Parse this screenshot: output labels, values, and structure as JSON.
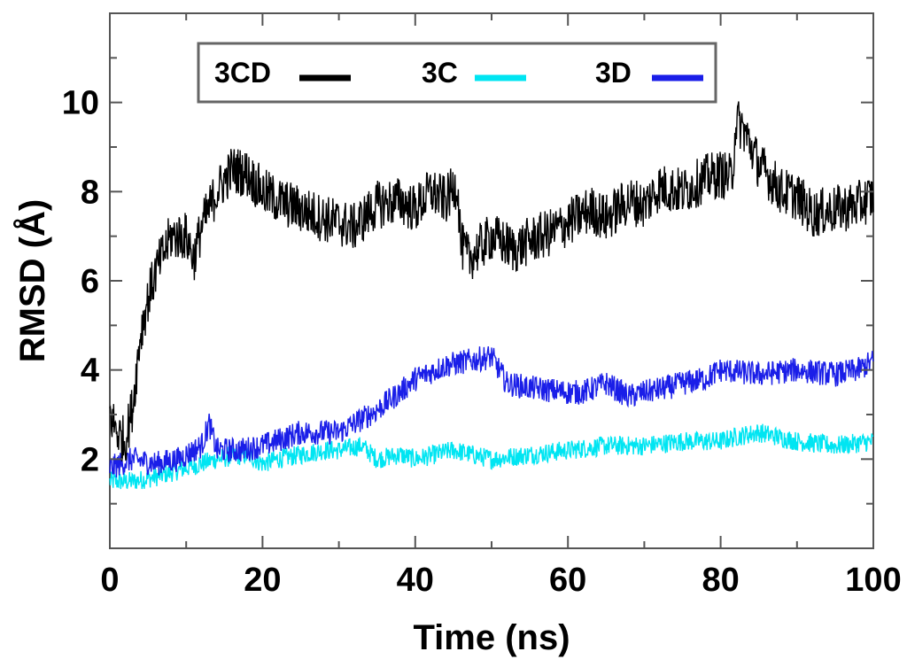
{
  "chart_data": {
    "type": "line",
    "xlabel": "Time (ns)",
    "ylabel": "RMSD (Å)",
    "xlim": [
      0,
      100
    ],
    "ylim": [
      0,
      12
    ],
    "x_ticks": [
      0,
      20,
      40,
      60,
      80,
      100
    ],
    "x_tick_labels": [
      "0",
      "20",
      "40",
      "60",
      "80",
      "100"
    ],
    "y_ticks": [
      2,
      4,
      6,
      8,
      10
    ],
    "y_tick_labels": [
      "2",
      "4",
      "6",
      "8",
      "10"
    ],
    "legend_placement": "top-center",
    "series": [
      {
        "name": "3CD",
        "color": "#000000",
        "x": [
          0,
          1,
          2,
          3,
          4,
          5,
          6,
          8,
          10,
          11,
          12,
          14,
          16,
          18,
          20,
          22,
          25,
          28,
          30,
          32,
          35,
          38,
          40,
          42,
          44,
          45.5,
          46,
          47,
          50,
          53,
          55,
          58,
          60,
          63,
          65,
          68,
          70,
          72,
          75,
          78,
          80,
          81.5,
          82,
          83,
          85,
          88,
          90,
          92,
          95,
          98,
          100
        ],
        "values": [
          3.0,
          2.6,
          2.4,
          3.2,
          4.8,
          5.6,
          6.2,
          7.0,
          7.0,
          6.5,
          7.2,
          8.0,
          8.5,
          8.4,
          8.0,
          7.8,
          7.6,
          7.4,
          7.3,
          7.2,
          7.7,
          7.8,
          7.6,
          8.0,
          7.8,
          8.2,
          6.8,
          6.5,
          7.0,
          6.7,
          6.9,
          7.1,
          7.3,
          7.6,
          7.4,
          7.8,
          7.7,
          8.1,
          8.0,
          8.3,
          8.4,
          8.3,
          9.6,
          9.4,
          8.6,
          8.0,
          7.9,
          7.5,
          7.6,
          7.7,
          7.9
        ]
      },
      {
        "name": "3C",
        "color": "#00e5f2",
        "x": [
          0,
          3,
          6,
          10,
          14,
          18,
          20,
          22,
          25,
          28,
          30,
          33,
          35,
          38,
          40,
          45,
          50,
          55,
          60,
          65,
          70,
          75,
          80,
          82,
          85,
          90,
          95,
          100
        ],
        "values": [
          1.5,
          1.5,
          1.6,
          1.8,
          2.0,
          2.1,
          1.9,
          2.0,
          2.1,
          2.2,
          2.2,
          2.3,
          2.0,
          2.1,
          2.0,
          2.2,
          2.0,
          2.1,
          2.2,
          2.3,
          2.3,
          2.4,
          2.4,
          2.5,
          2.6,
          2.4,
          2.3,
          2.4
        ]
      },
      {
        "name": "3D",
        "color": "#1a1ee8",
        "x": [
          0,
          3,
          6,
          9,
          12,
          13,
          14,
          17,
          20,
          25,
          30,
          32,
          35,
          38,
          40,
          44,
          47,
          50,
          52,
          55,
          60,
          62,
          65,
          68,
          70,
          73,
          75,
          78,
          80,
          85,
          90,
          95,
          98,
          100
        ],
        "values": [
          1.8,
          2.0,
          1.9,
          2.0,
          2.3,
          2.8,
          2.2,
          2.2,
          2.3,
          2.6,
          2.6,
          2.8,
          3.1,
          3.5,
          3.8,
          4.1,
          4.2,
          4.3,
          3.7,
          3.6,
          3.5,
          3.5,
          3.7,
          3.4,
          3.5,
          3.6,
          3.7,
          3.8,
          4.0,
          3.9,
          4.0,
          3.9,
          4.0,
          4.2
        ]
      }
    ]
  }
}
